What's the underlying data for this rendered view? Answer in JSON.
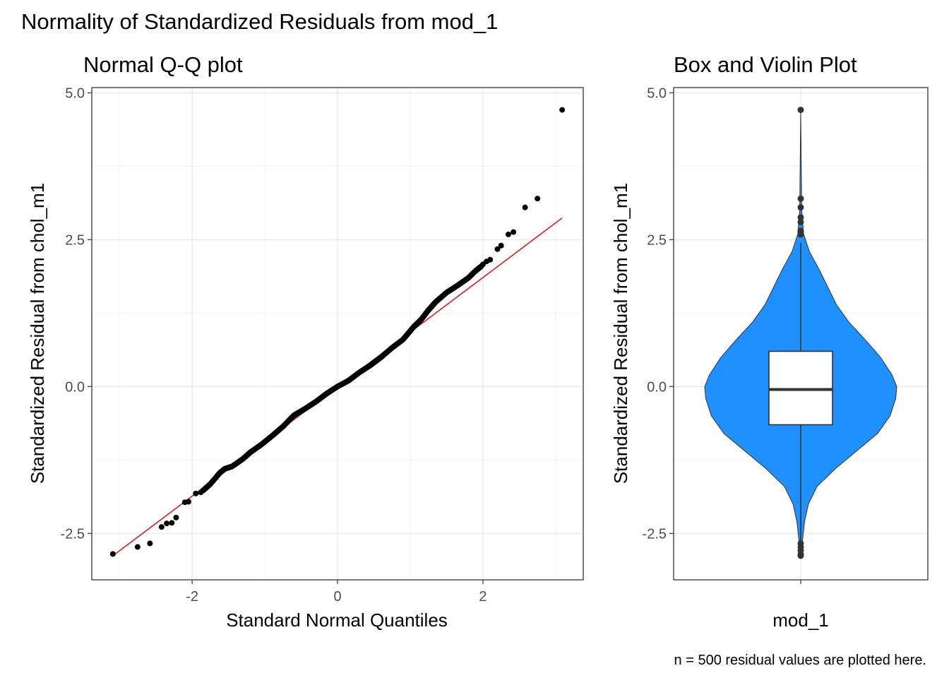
{
  "figure": {
    "title": "Normality of Standardized Residuals from mod_1",
    "caption": "n = 500 residual values are plotted here."
  },
  "chart_data": [
    {
      "type": "scatter",
      "title": "Normal Q-Q plot",
      "xlabel": "Standard Normal Quantiles",
      "ylabel": "Standardized Residual from chol_m1",
      "xlim": [
        -3.38,
        3.38
      ],
      "ylim": [
        -3.29,
        5.09
      ],
      "x_ticks": [
        -2,
        0,
        2
      ],
      "x_tick_labels": [
        "-2",
        "0",
        "2"
      ],
      "y_ticks": [
        -2.5,
        0.0,
        2.5,
        5.0
      ],
      "y_tick_labels": [
        "-2.5",
        "0.0",
        "2.5",
        "5.0"
      ],
      "grid": true,
      "point_color": "#000000",
      "line_color": "#e41a1c",
      "reference_line": {
        "x": [
          -3.09,
          3.09
        ],
        "y": [
          -2.88,
          2.87
        ]
      },
      "outlier_points": [
        {
          "x": -3.09,
          "y": -2.85
        },
        {
          "x": -2.75,
          "y": -2.73
        },
        {
          "x": -2.58,
          "y": -2.67
        },
        {
          "x": -2.42,
          "y": -2.39
        },
        {
          "x": -2.35,
          "y": -2.33
        },
        {
          "x": -2.28,
          "y": -2.32
        },
        {
          "x": -2.22,
          "y": -2.23
        },
        {
          "x": -2.1,
          "y": -1.97
        },
        {
          "x": -2.05,
          "y": -1.96
        },
        {
          "x": -1.95,
          "y": -1.82
        },
        {
          "x": -1.88,
          "y": -1.8
        },
        {
          "x": 2.0,
          "y": 2.08
        },
        {
          "x": 2.05,
          "y": 2.13
        },
        {
          "x": 2.1,
          "y": 2.16
        },
        {
          "x": 2.2,
          "y": 2.34
        },
        {
          "x": 2.25,
          "y": 2.4
        },
        {
          "x": 2.35,
          "y": 2.59
        },
        {
          "x": 2.42,
          "y": 2.63
        },
        {
          "x": 2.58,
          "y": 3.05
        },
        {
          "x": 2.75,
          "y": 3.2
        },
        {
          "x": 3.09,
          "y": 4.71
        }
      ],
      "sample_curve": [
        [
          -1.85,
          -1.77
        ],
        [
          -1.75,
          -1.66
        ],
        [
          -1.62,
          -1.47
        ],
        [
          -1.55,
          -1.4
        ],
        [
          -1.45,
          -1.36
        ],
        [
          -1.3,
          -1.23
        ],
        [
          -1.2,
          -1.12
        ],
        [
          -1.05,
          -0.99
        ],
        [
          -0.9,
          -0.84
        ],
        [
          -0.75,
          -0.68
        ],
        [
          -0.6,
          -0.49
        ],
        [
          -0.45,
          -0.38
        ],
        [
          -0.3,
          -0.26
        ],
        [
          -0.15,
          -0.12
        ],
        [
          0.0,
          0.0
        ],
        [
          0.15,
          0.1
        ],
        [
          0.3,
          0.24
        ],
        [
          0.45,
          0.36
        ],
        [
          0.6,
          0.5
        ],
        [
          0.75,
          0.66
        ],
        [
          0.9,
          0.8
        ],
        [
          1.05,
          1.02
        ],
        [
          1.15,
          1.14
        ],
        [
          1.25,
          1.3
        ],
        [
          1.35,
          1.44
        ],
        [
          1.5,
          1.6
        ],
        [
          1.65,
          1.72
        ],
        [
          1.8,
          1.85
        ],
        [
          1.9,
          1.97
        ],
        [
          1.98,
          2.05
        ]
      ]
    },
    {
      "type": "box-violin",
      "title": "Box and Violin Plot",
      "xlabel": "",
      "ylabel": "Standardized Residual from chol_m1",
      "categories": [
        "mod_1"
      ],
      "ylim": [
        -3.29,
        5.09
      ],
      "y_ticks": [
        -2.5,
        0.0,
        2.5,
        5.0
      ],
      "y_tick_labels": [
        "-2.5",
        "0.0",
        "2.5",
        "5.0"
      ],
      "grid": true,
      "violin_color": "#1e90ff",
      "box_color": "#ffffff",
      "box": {
        "q1": -0.65,
        "median": -0.05,
        "q3": 0.6,
        "whisker_low": -2.62,
        "whisker_high": 2.45
      },
      "outliers": [
        -2.88,
        -2.85,
        -2.79,
        -2.73,
        -2.67,
        2.59,
        2.63,
        2.65,
        2.8,
        2.88,
        3.05,
        3.2,
        4.71
      ],
      "violin_profile": [
        [
          -2.88,
          0.0
        ],
        [
          -2.6,
          0.02
        ],
        [
          -2.3,
          0.04
        ],
        [
          -2.0,
          0.08
        ],
        [
          -1.7,
          0.17
        ],
        [
          -1.4,
          0.36
        ],
        [
          -1.1,
          0.58
        ],
        [
          -0.8,
          0.8
        ],
        [
          -0.5,
          0.93
        ],
        [
          -0.2,
          0.99
        ],
        [
          0.0,
          1.0
        ],
        [
          0.2,
          0.95
        ],
        [
          0.5,
          0.83
        ],
        [
          0.8,
          0.67
        ],
        [
          1.1,
          0.5
        ],
        [
          1.4,
          0.37
        ],
        [
          1.7,
          0.28
        ],
        [
          2.0,
          0.19
        ],
        [
          2.3,
          0.09
        ],
        [
          2.6,
          0.03
        ],
        [
          3.0,
          0.01
        ],
        [
          4.71,
          0.0
        ]
      ]
    }
  ]
}
